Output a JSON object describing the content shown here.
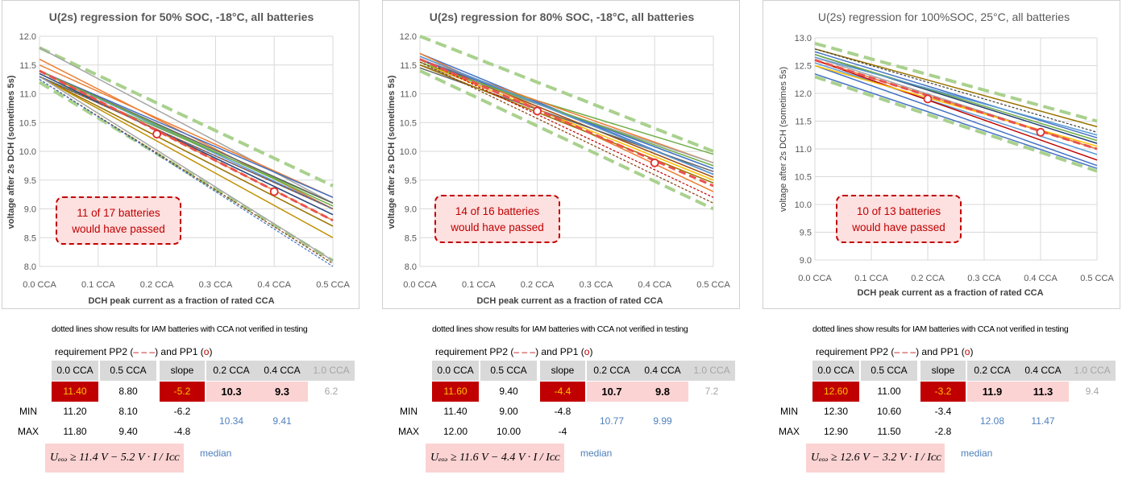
{
  "chart_data": [
    {
      "type": "line",
      "title": "U(2s) regression for 50% SOC, -18°C, all batteries",
      "xlabel": "DCH peak current as a fraction of rated CCA",
      "ylabel": "voltage after 2s DCH (sometimes 5s)",
      "x_ticks": [
        "0.0 CCA",
        "0.1 CCA",
        "0.2 CCA",
        "0.3 CCA",
        "0.4 CCA",
        "0.5 CCA"
      ],
      "y_ticks": [
        "8.0",
        "8.5",
        "9.0",
        "9.5",
        "10.0",
        "10.5",
        "11.0",
        "11.5",
        "12.0"
      ],
      "xlim": [
        0,
        0.5
      ],
      "ylim": [
        8.0,
        12.0
      ],
      "grid": true,
      "annotation": [
        "11 of 17 batteries",
        "would have passed"
      ],
      "requirement_lines": [
        {
          "name": "",
          "y0": 11.8,
          "y1": 9.4,
          "style": "green-dashed"
        },
        {
          "name": "",
          "y0": 11.2,
          "y1": 8.1,
          "style": "green-dashed"
        },
        {
          "name": "PP2",
          "y0": 11.4,
          "y1": 8.8,
          "style": "red-dashed"
        }
      ],
      "pp1_points": [
        {
          "x": 0.2,
          "y": 10.3
        },
        {
          "x": 0.4,
          "y": 9.3
        }
      ],
      "series": [
        {
          "y0": 11.6,
          "y1": 9.0,
          "color": "#ed7d31",
          "style": "solid"
        },
        {
          "y0": 11.8,
          "y1": 9.1,
          "color": "#a5a5a5",
          "style": "solid"
        },
        {
          "y0": 11.5,
          "y1": 9.2,
          "color": "#ed7d31",
          "style": "solid"
        },
        {
          "y0": 11.4,
          "y1": 9.2,
          "color": "#4472c4",
          "style": "solid"
        },
        {
          "y0": 11.4,
          "y1": 9.0,
          "color": "#5b9bd5",
          "style": "solid"
        },
        {
          "y0": 11.3,
          "y1": 9.1,
          "color": "#70ad47",
          "style": "solid"
        },
        {
          "y0": 11.35,
          "y1": 8.9,
          "color": "#264478",
          "style": "solid"
        },
        {
          "y0": 11.4,
          "y1": 8.8,
          "color": "#ed7d31",
          "style": "solid"
        },
        {
          "y0": 11.3,
          "y1": 9.0,
          "color": "#9e480e",
          "style": "solid"
        },
        {
          "y0": 11.4,
          "y1": 9.1,
          "color": "#636363",
          "style": "solid"
        },
        {
          "y0": 11.3,
          "y1": 8.7,
          "color": "#997300",
          "style": "solid"
        },
        {
          "y0": 11.3,
          "y1": 8.5,
          "color": "#c19000",
          "style": "solid"
        },
        {
          "y0": 11.3,
          "y1": 8.1,
          "color": "#a5a5a5",
          "style": "solid"
        },
        {
          "y0": 11.25,
          "y1": 8.05,
          "color": "#843c0c",
          "style": "dotted"
        },
        {
          "y0": 11.25,
          "y1": 8.0,
          "color": "#4472c4",
          "style": "dotted"
        },
        {
          "y0": 11.3,
          "y1": 9.0,
          "color": "#4472c4",
          "style": "dotted"
        },
        {
          "y0": 11.4,
          "y1": 9.05,
          "color": "#70ad47",
          "style": "solid"
        }
      ]
    },
    {
      "type": "line",
      "title": "U(2s) regression for 80% SOC, -18°C, all batteries",
      "xlabel": "DCH peak current as a fraction of rated CCA",
      "ylabel": "voltage after 2s DCH (sometimes 5s)",
      "x_ticks": [
        "0.0 CCA",
        "0.1 CCA",
        "0.2 CCA",
        "0.3 CCA",
        "0.4 CCA",
        "0.5 CCA"
      ],
      "y_ticks": [
        "8.0",
        "8.5",
        "9.0",
        "9.5",
        "10.0",
        "10.5",
        "11.0",
        "11.5",
        "12.0"
      ],
      "xlim": [
        0,
        0.5
      ],
      "ylim": [
        8.0,
        12.0
      ],
      "grid": true,
      "annotation": [
        "14 of 16 batteries",
        "would have passed"
      ],
      "requirement_lines": [
        {
          "name": "",
          "y0": 12.0,
          "y1": 10.0,
          "style": "green-dashed"
        },
        {
          "name": "",
          "y0": 11.4,
          "y1": 9.0,
          "style": "green-dashed"
        },
        {
          "name": "PP2",
          "y0": 11.6,
          "y1": 9.4,
          "style": "red-dashed"
        }
      ],
      "pp1_points": [
        {
          "x": 0.2,
          "y": 10.7
        },
        {
          "x": 0.4,
          "y": 9.8
        }
      ],
      "series": [
        {
          "y0": 11.7,
          "y1": 9.6,
          "color": "#4472c4",
          "style": "solid"
        },
        {
          "y0": 11.6,
          "y1": 9.7,
          "color": "#5b9bd5",
          "style": "solid"
        },
        {
          "y0": 11.5,
          "y1": 9.95,
          "color": "#70ad47",
          "style": "solid"
        },
        {
          "y0": 11.6,
          "y1": 9.8,
          "color": "#ed7d31",
          "style": "solid"
        },
        {
          "y0": 11.5,
          "y1": 9.8,
          "color": "#a5a5a5",
          "style": "solid"
        },
        {
          "y0": 11.65,
          "y1": 9.6,
          "color": "#264478",
          "style": "solid"
        },
        {
          "y0": 11.55,
          "y1": 9.5,
          "color": "#ffc000",
          "style": "solid"
        },
        {
          "y0": 11.6,
          "y1": 9.55,
          "color": "#9e480e",
          "style": "solid"
        },
        {
          "y0": 11.45,
          "y1": 9.65,
          "color": "#636363",
          "style": "solid"
        },
        {
          "y0": 11.7,
          "y1": 9.3,
          "color": "#ed7d31",
          "style": "solid"
        },
        {
          "y0": 11.6,
          "y1": 9.7,
          "color": "#4472c4",
          "style": "solid"
        },
        {
          "y0": 11.55,
          "y1": 9.75,
          "color": "#70ad47",
          "style": "solid"
        },
        {
          "y0": 11.5,
          "y1": 9.45,
          "color": "#997300",
          "style": "solid"
        },
        {
          "y0": 11.6,
          "y1": 9.2,
          "color": "#c00000",
          "style": "dotted"
        },
        {
          "y0": 11.55,
          "y1": 9.1,
          "color": "#843c0c",
          "style": "dotted"
        },
        {
          "y0": 11.65,
          "y1": 9.6,
          "color": "#5b9bd5",
          "style": "solid"
        }
      ]
    },
    {
      "type": "line",
      "title": "U(2s) regression for 100%SOC, 25°C, all batteries",
      "xlabel": "DCH peak current as a fraction of rated CCA",
      "ylabel": "voltage after 2s DCH (sometimes 5s)",
      "x_ticks": [
        "0.0 CCA",
        "0.1 CCA",
        "0.2 CCA",
        "0.3 CCA",
        "0.4 CCA",
        "0.5 CCA"
      ],
      "y_ticks": [
        "9.0",
        "9.5",
        "10.0",
        "10.5",
        "11.0",
        "11.5",
        "12.0",
        "12.5",
        "13.0"
      ],
      "xlim": [
        0,
        0.5
      ],
      "ylim": [
        9.0,
        13.0
      ],
      "grid": true,
      "annotation": [
        "10 of 13 batteries",
        "would have passed"
      ],
      "requirement_lines": [
        {
          "name": "",
          "y0": 12.9,
          "y1": 11.5,
          "style": "green-dashed"
        },
        {
          "name": "",
          "y0": 12.3,
          "y1": 10.6,
          "style": "green-dashed"
        },
        {
          "name": "PP2",
          "y0": 12.6,
          "y1": 11.0,
          "style": "red-dashed"
        }
      ],
      "pp1_points": [
        {
          "x": 0.2,
          "y": 11.9
        },
        {
          "x": 0.4,
          "y": 11.3
        }
      ],
      "series": [
        {
          "y0": 12.8,
          "y1": 11.4,
          "color": "#997300",
          "style": "solid"
        },
        {
          "y0": 12.75,
          "y1": 11.2,
          "color": "#4472c4",
          "style": "solid"
        },
        {
          "y0": 12.7,
          "y1": 11.1,
          "color": "#264478",
          "style": "solid"
        },
        {
          "y0": 12.65,
          "y1": 11.0,
          "color": "#a5a5a5",
          "style": "solid"
        },
        {
          "y0": 12.6,
          "y1": 11.0,
          "color": "#ed7d31",
          "style": "solid"
        },
        {
          "y0": 12.55,
          "y1": 10.9,
          "color": "#5b9bd5",
          "style": "solid"
        },
        {
          "y0": 12.6,
          "y1": 10.8,
          "color": "#c00000",
          "style": "solid"
        },
        {
          "y0": 12.5,
          "y1": 10.7,
          "color": "#4472c4",
          "style": "solid"
        },
        {
          "y0": 12.35,
          "y1": 10.65,
          "color": "#4472c4",
          "style": "solid"
        },
        {
          "y0": 12.8,
          "y1": 11.3,
          "color": "#404040",
          "style": "dotted"
        },
        {
          "y0": 12.7,
          "y1": 11.15,
          "color": "#70ad47",
          "style": "solid"
        },
        {
          "y0": 12.5,
          "y1": 11.05,
          "color": "#ffc000",
          "style": "solid"
        },
        {
          "y0": 12.65,
          "y1": 11.25,
          "color": "#5b9bd5",
          "style": "solid"
        }
      ]
    }
  ],
  "summaries": [
    {
      "dotted_note": "dotted lines show results for IAM batteries with CCA not verified in testing",
      "req_a": "requirement PP2 (",
      "req_dash": "– – –",
      "req_b": ") and PP1 (",
      "req_circle": "o",
      "req_c": ")",
      "headers": [
        "0.0 CCA",
        "0.5 CCA",
        "slope",
        "0.2 CCA",
        "0.4 CCA",
        "1.0 CCA"
      ],
      "req_row": [
        "11.40",
        "8.80",
        "-5.2",
        "10.3",
        "9.3",
        "6.2"
      ],
      "min_label": "MIN",
      "min_row": [
        "11.20",
        "8.10",
        "-6.2"
      ],
      "max_label": "MAX",
      "max_row": [
        "11.80",
        "9.40",
        "-4.8"
      ],
      "medians": [
        "10.34",
        "9.41"
      ],
      "formula": "Uₑₒₔ ≥ 11.4 V − 5.2 V · I / Iᴄᴄ",
      "median_label": "median"
    },
    {
      "dotted_note": "dotted lines show results for IAM batteries with CCA not verified in testing",
      "req_a": "requirement PP2 (",
      "req_dash": "– – –",
      "req_b": ") and PP1 (",
      "req_circle": "o",
      "req_c": ")",
      "headers": [
        "0.0 CCA",
        "0.5 CCA",
        "slope",
        "0.2 CCA",
        "0.4 CCA",
        "1.0 CCA"
      ],
      "req_row": [
        "11.60",
        "9.40",
        "-4.4",
        "10.7",
        "9.8",
        "7.2"
      ],
      "min_label": "MIN",
      "min_row": [
        "11.40",
        "9.00",
        "-4.8"
      ],
      "max_label": "MAX",
      "max_row": [
        "12.00",
        "10.00",
        "-4"
      ],
      "medians": [
        "10.77",
        "9.99"
      ],
      "formula": "Uₑₒₔ ≥ 11.6 V − 4.4 V · I / Iᴄᴄ",
      "median_label": "median"
    },
    {
      "dotted_note": "dotted lines show results for IAM batteries with CCA not verified in testing",
      "req_a": "requirement PP2 (",
      "req_dash": "– – –",
      "req_b": ") and PP1 (",
      "req_circle": "o",
      "req_c": ")",
      "headers": [
        "0.0 CCA",
        "0.5 CCA",
        "slope",
        "0.2 CCA",
        "0.4 CCA",
        "1.0 CCA"
      ],
      "req_row": [
        "12.60",
        "11.00",
        "-3.2",
        "11.9",
        "11.3",
        "9.4"
      ],
      "min_label": "MIN",
      "min_row": [
        "12.30",
        "10.60",
        "-3.4"
      ],
      "max_label": "MAX",
      "max_row": [
        "12.90",
        "11.50",
        "-2.8"
      ],
      "medians": [
        "12.08",
        "11.47"
      ],
      "formula": "Uₑₒₔ ≥ 12.6 V − 3.2 V · I / Iᴄᴄ",
      "median_label": "median"
    }
  ]
}
